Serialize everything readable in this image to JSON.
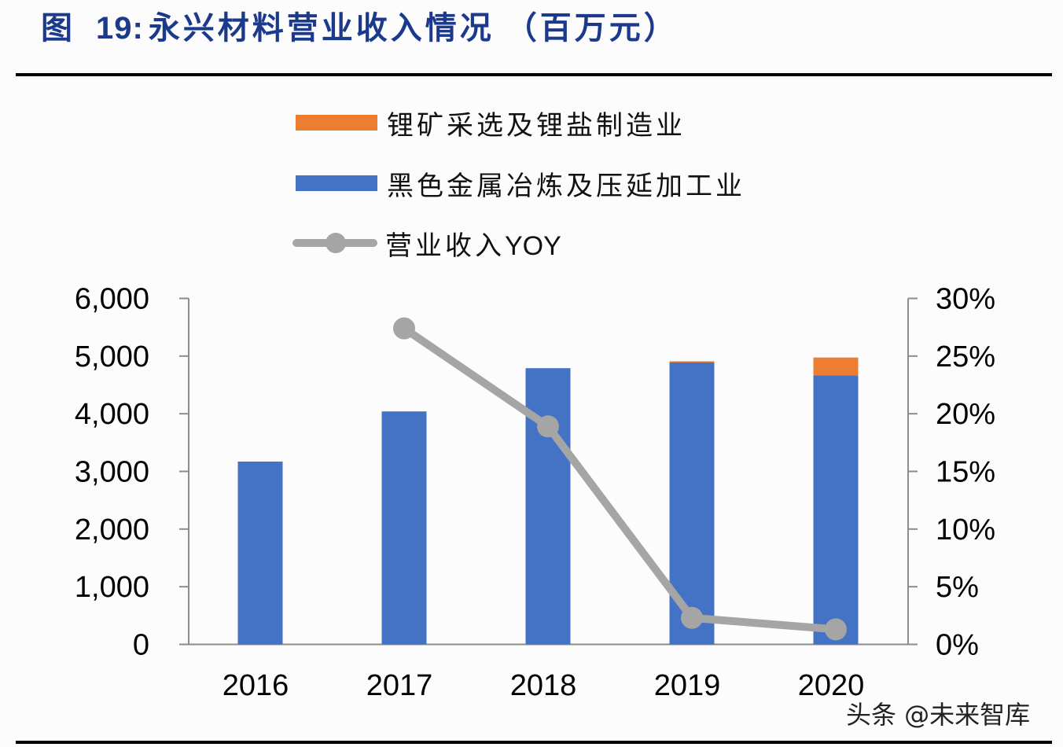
{
  "header": {
    "figure_label": "图",
    "figure_number": "19:",
    "title": "永兴材料营业收入情况",
    "unit": "（百万元）"
  },
  "colors": {
    "title": "#1B3A8C",
    "lithium": "#ED7D31",
    "ferrous": "#4472C4",
    "yoy_line": "#A5A5A5",
    "axis": "#8C8C8C"
  },
  "legend": {
    "items": [
      {
        "label": "锂矿采选及锂盐制造业",
        "type": "bar",
        "color": "#ED7D31"
      },
      {
        "label": "黑色金属冶炼及压延加工业",
        "type": "bar",
        "color": "#4472C4"
      },
      {
        "label": "营业收入",
        "label_suffix": "YOY",
        "type": "line",
        "color": "#A5A5A5"
      }
    ]
  },
  "watermark": "头条 @未来智库",
  "chart_data": {
    "type": "bar",
    "stacked": true,
    "title": "图 19：永兴材料营业收入情况（百万元）",
    "categories": [
      "2016",
      "2017",
      "2018",
      "2019",
      "2020"
    ],
    "series": [
      {
        "name": "黑色金属冶炼及压延加工业",
        "type": "bar",
        "axis": "left",
        "values": [
          3170,
          4040,
          4790,
          4890,
          4665
        ]
      },
      {
        "name": "锂矿采选及锂盐制造业",
        "type": "bar",
        "axis": "left",
        "values": [
          0,
          0,
          0,
          20,
          310
        ]
      },
      {
        "name": "营业收入YOY",
        "type": "line",
        "axis": "right",
        "values": [
          null,
          27.4,
          18.9,
          2.3,
          1.3
        ],
        "unit": "%"
      }
    ],
    "left_axis": {
      "ylim": [
        0,
        6000
      ],
      "ticks": [
        "0",
        "1,000",
        "2,000",
        "3,000",
        "4,000",
        "5,000",
        "6,000"
      ]
    },
    "right_axis": {
      "ylim": [
        0,
        30
      ],
      "ticks": [
        "0%",
        "5%",
        "10%",
        "15%",
        "20%",
        "25%",
        "30%"
      ]
    },
    "xlabel": "",
    "ylabel": "",
    "grid": false,
    "legend_position": "top"
  }
}
